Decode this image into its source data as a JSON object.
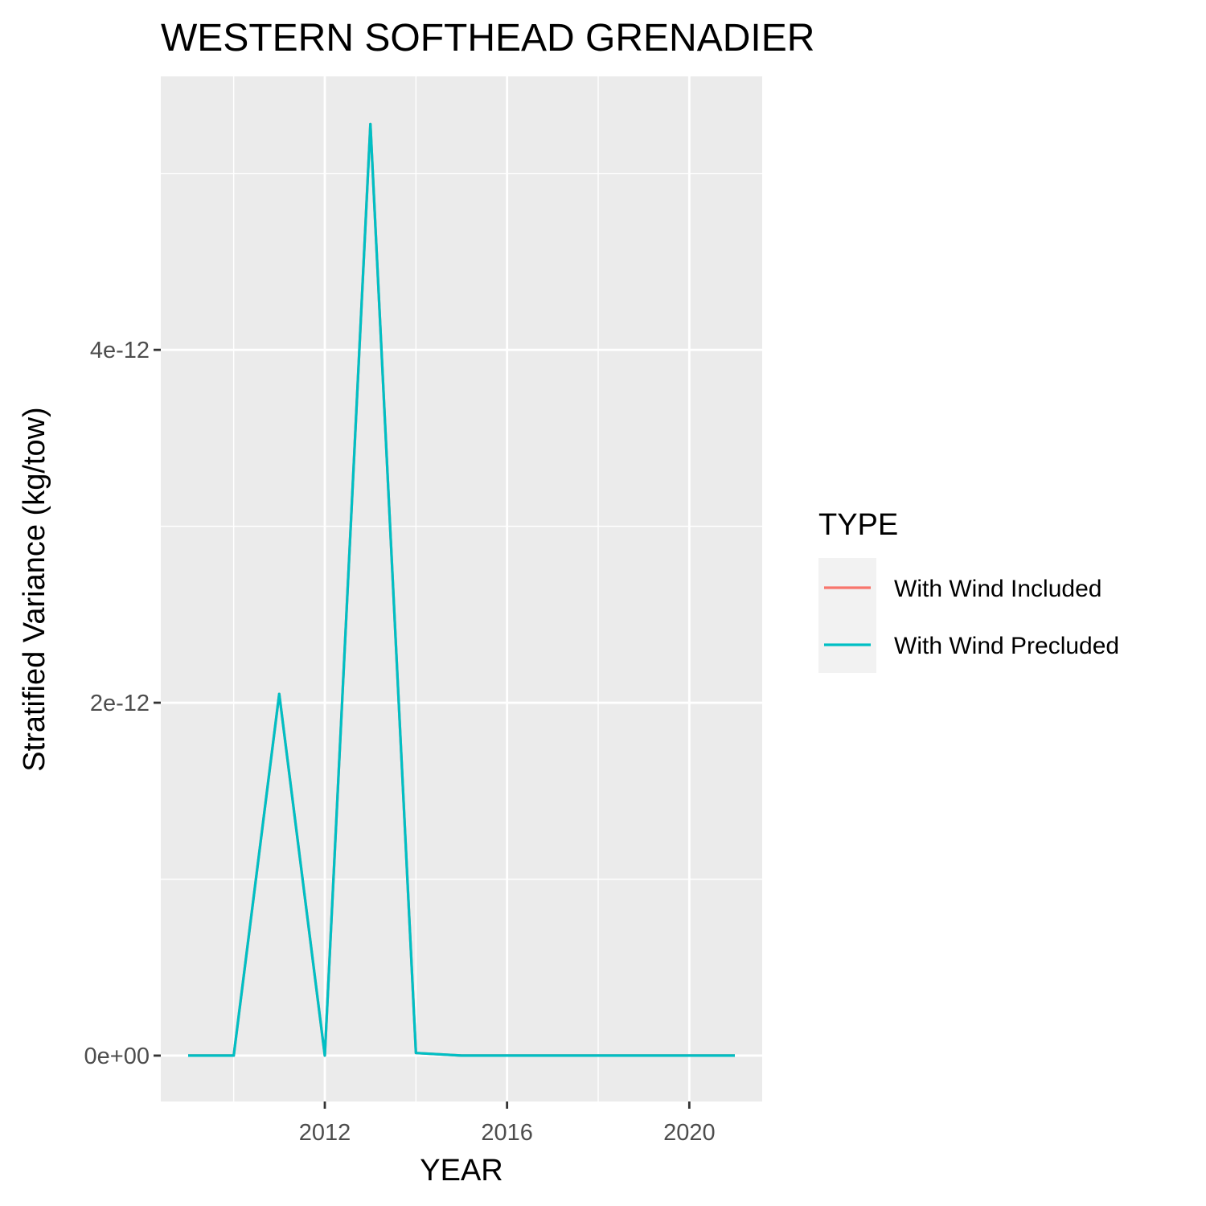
{
  "chart_data": {
    "type": "line",
    "title": "WESTERN SOFTHEAD GRENADIER",
    "xlabel": "YEAR",
    "ylabel": "Stratified Variance (kg/tow)",
    "xlim": [
      2008.4,
      2021.6
    ],
    "ylim": [
      -2.6e-13,
      5.55e-12
    ],
    "x_ticks": [
      2012,
      2016,
      2020
    ],
    "x_tick_labels": [
      "2012",
      "2016",
      "2020"
    ],
    "y_ticks": [
      0,
      2e-12,
      4e-12
    ],
    "y_tick_labels": [
      "0e+00",
      "2e-12",
      "4e-12"
    ],
    "x_minor": [
      2010,
      2014,
      2018
    ],
    "y_minor": [
      1e-12,
      3e-12,
      5e-12
    ],
    "grid": true,
    "legend": {
      "title": "TYPE",
      "position": "right",
      "entries": [
        "With Wind Included",
        "With Wind Precluded"
      ]
    },
    "x": [
      2009,
      2010,
      2011,
      2012,
      2013,
      2014,
      2015,
      2016,
      2017,
      2018,
      2019,
      2020,
      2021
    ],
    "series": [
      {
        "name": "With Wind Included",
        "color": "#F8766D",
        "values": [
          0,
          0,
          2.05e-12,
          0,
          5.28e-12,
          1.5e-14,
          0,
          0,
          0,
          0,
          0,
          0,
          0
        ]
      },
      {
        "name": "With Wind Precluded",
        "color": "#00BFC4",
        "values": [
          0,
          0,
          2.05e-12,
          0,
          5.28e-12,
          1.5e-14,
          0,
          0,
          0,
          0,
          0,
          0,
          0
        ]
      }
    ]
  },
  "colors": {
    "panel_background": "#EBEBEB",
    "grid": "#FFFFFF",
    "legend_key_background": "#F2F2F2",
    "tick_text": "#4D4D4D",
    "tick_mark": "#333333"
  }
}
